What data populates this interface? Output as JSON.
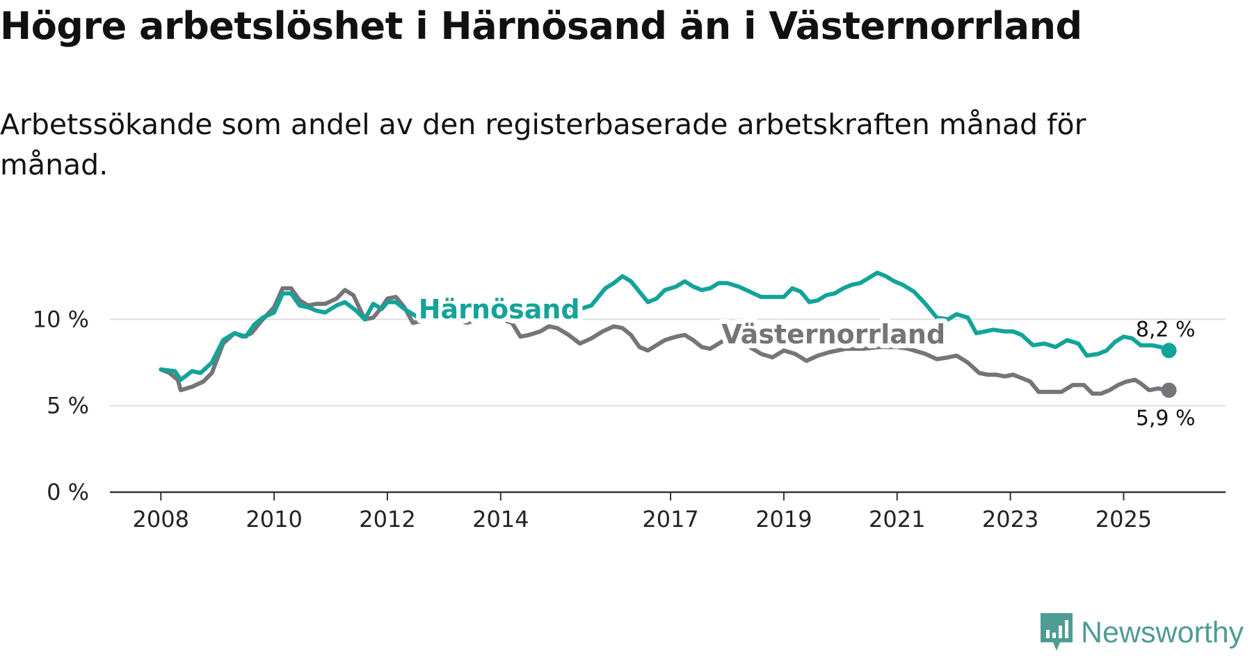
{
  "brand": {
    "name": "Newsworthy"
  },
  "chart_data": {
    "type": "line",
    "title": "Högre arbetslöshet i Härnösand än i Västernorrland",
    "subtitle": "Arbetssökande som andel av den registerbaserade arbetskraften månad för månad.",
    "xlabel": "",
    "ylabel": "",
    "x_ticks": [
      {
        "label": "2008",
        "value": 2008
      },
      {
        "label": "2010",
        "value": 2010
      },
      {
        "label": "2012",
        "value": 2012
      },
      {
        "label": "2014",
        "value": 2014
      },
      {
        "label": "2017",
        "value": 2017
      },
      {
        "label": "2019",
        "value": 2019
      },
      {
        "label": "2021",
        "value": 2021
      },
      {
        "label": "2023",
        "value": 2023
      },
      {
        "label": "2025",
        "value": 2025
      }
    ],
    "y_ticks": [
      {
        "label": "0 %",
        "value": 0
      },
      {
        "label": "5 %",
        "value": 5
      },
      {
        "label": "10 %",
        "value": 10
      }
    ],
    "xlim": [
      2007.1,
      2026.8
    ],
    "ylim": [
      0,
      14
    ],
    "grid": true,
    "series": [
      {
        "name": "Härnösand",
        "color": "#14a399",
        "end_label": "8,2 %",
        "points": [
          [
            2008.0,
            7.1
          ],
          [
            2008.25,
            7.0
          ],
          [
            2008.35,
            6.5
          ],
          [
            2008.55,
            7.0
          ],
          [
            2008.7,
            6.9
          ],
          [
            2008.9,
            7.5
          ],
          [
            2009.1,
            8.8
          ],
          [
            2009.3,
            9.2
          ],
          [
            2009.5,
            9.0
          ],
          [
            2009.65,
            9.7
          ],
          [
            2009.8,
            10.1
          ],
          [
            2010.0,
            10.4
          ],
          [
            2010.15,
            11.5
          ],
          [
            2010.3,
            11.5
          ],
          [
            2010.45,
            10.8
          ],
          [
            2010.6,
            10.7
          ],
          [
            2010.75,
            10.5
          ],
          [
            2010.9,
            10.4
          ],
          [
            2011.1,
            10.8
          ],
          [
            2011.25,
            11.0
          ],
          [
            2011.45,
            10.5
          ],
          [
            2011.6,
            10.0
          ],
          [
            2011.75,
            10.9
          ],
          [
            2011.9,
            10.6
          ],
          [
            2012.0,
            11.0
          ],
          [
            2012.15,
            11.0
          ],
          [
            2012.3,
            10.6
          ],
          [
            2012.45,
            10.3
          ],
          [
            2012.6,
            10.0
          ],
          [
            2012.75,
            10.2
          ],
          [
            2013.0,
            10.3
          ],
          [
            2013.3,
            10.2
          ],
          [
            2013.6,
            10.0
          ],
          [
            2013.9,
            10.3
          ],
          [
            2014.2,
            10.5
          ],
          [
            2014.5,
            10.0
          ],
          [
            2014.8,
            10.3
          ],
          [
            2015.1,
            10.4
          ],
          [
            2015.4,
            10.6
          ],
          [
            2015.6,
            10.8
          ],
          [
            2015.85,
            11.8
          ],
          [
            2016.0,
            12.1
          ],
          [
            2016.15,
            12.5
          ],
          [
            2016.3,
            12.2
          ],
          [
            2016.45,
            11.6
          ],
          [
            2016.6,
            11.0
          ],
          [
            2016.75,
            11.2
          ],
          [
            2016.9,
            11.7
          ],
          [
            2017.1,
            11.9
          ],
          [
            2017.25,
            12.2
          ],
          [
            2017.4,
            11.9
          ],
          [
            2017.55,
            11.7
          ],
          [
            2017.7,
            11.8
          ],
          [
            2017.85,
            12.1
          ],
          [
            2018.0,
            12.1
          ],
          [
            2018.2,
            11.9
          ],
          [
            2018.4,
            11.6
          ],
          [
            2018.6,
            11.3
          ],
          [
            2018.8,
            11.3
          ],
          [
            2019.0,
            11.3
          ],
          [
            2019.15,
            11.8
          ],
          [
            2019.3,
            11.6
          ],
          [
            2019.45,
            11.0
          ],
          [
            2019.6,
            11.1
          ],
          [
            2019.75,
            11.4
          ],
          [
            2019.9,
            11.5
          ],
          [
            2020.05,
            11.8
          ],
          [
            2020.2,
            12.0
          ],
          [
            2020.35,
            12.1
          ],
          [
            2020.5,
            12.4
          ],
          [
            2020.65,
            12.7
          ],
          [
            2020.8,
            12.5
          ],
          [
            2020.95,
            12.2
          ],
          [
            2021.1,
            12.0
          ],
          [
            2021.3,
            11.6
          ],
          [
            2021.5,
            10.9
          ],
          [
            2021.7,
            10.1
          ],
          [
            2021.9,
            10.0
          ],
          [
            2022.05,
            10.3
          ],
          [
            2022.25,
            10.1
          ],
          [
            2022.4,
            9.2
          ],
          [
            2022.55,
            9.3
          ],
          [
            2022.7,
            9.4
          ],
          [
            2022.9,
            9.3
          ],
          [
            2023.05,
            9.3
          ],
          [
            2023.2,
            9.1
          ],
          [
            2023.4,
            8.5
          ],
          [
            2023.6,
            8.6
          ],
          [
            2023.8,
            8.4
          ],
          [
            2024.0,
            8.8
          ],
          [
            2024.2,
            8.6
          ],
          [
            2024.35,
            7.9
          ],
          [
            2024.55,
            8.0
          ],
          [
            2024.7,
            8.2
          ],
          [
            2024.85,
            8.7
          ],
          [
            2025.0,
            9.0
          ],
          [
            2025.15,
            8.9
          ],
          [
            2025.3,
            8.5
          ],
          [
            2025.5,
            8.5
          ],
          [
            2025.65,
            8.4
          ],
          [
            2025.8,
            8.2
          ]
        ]
      },
      {
        "name": "Västernorrland",
        "color": "#747479",
        "end_label": "5,9 %",
        "points": [
          [
            2008.0,
            7.1
          ],
          [
            2008.15,
            6.9
          ],
          [
            2008.3,
            6.5
          ],
          [
            2008.35,
            5.9
          ],
          [
            2008.55,
            6.1
          ],
          [
            2008.75,
            6.4
          ],
          [
            2008.9,
            6.9
          ],
          [
            2009.1,
            8.6
          ],
          [
            2009.3,
            9.2
          ],
          [
            2009.45,
            9.0
          ],
          [
            2009.6,
            9.2
          ],
          [
            2009.8,
            10.0
          ],
          [
            2010.0,
            10.7
          ],
          [
            2010.15,
            11.8
          ],
          [
            2010.3,
            11.8
          ],
          [
            2010.45,
            11.1
          ],
          [
            2010.6,
            10.8
          ],
          [
            2010.75,
            10.9
          ],
          [
            2010.9,
            10.9
          ],
          [
            2011.1,
            11.2
          ],
          [
            2011.25,
            11.7
          ],
          [
            2011.4,
            11.4
          ],
          [
            2011.6,
            10.0
          ],
          [
            2011.75,
            10.1
          ],
          [
            2011.9,
            10.7
          ],
          [
            2012.0,
            11.2
          ],
          [
            2012.15,
            11.3
          ],
          [
            2012.3,
            10.7
          ],
          [
            2012.45,
            9.8
          ],
          [
            2012.6,
            9.9
          ],
          [
            2012.8,
            10.1
          ],
          [
            2013.1,
            10.2
          ],
          [
            2013.4,
            9.8
          ],
          [
            2013.7,
            10.1
          ],
          [
            2014.0,
            10.0
          ],
          [
            2014.2,
            9.8
          ],
          [
            2014.35,
            9.0
          ],
          [
            2014.5,
            9.1
          ],
          [
            2014.7,
            9.3
          ],
          [
            2014.85,
            9.6
          ],
          [
            2015.0,
            9.5
          ],
          [
            2015.2,
            9.1
          ],
          [
            2015.4,
            8.6
          ],
          [
            2015.6,
            8.9
          ],
          [
            2015.8,
            9.3
          ],
          [
            2016.0,
            9.6
          ],
          [
            2016.15,
            9.5
          ],
          [
            2016.3,
            9.1
          ],
          [
            2016.45,
            8.4
          ],
          [
            2016.6,
            8.2
          ],
          [
            2016.75,
            8.5
          ],
          [
            2016.9,
            8.8
          ],
          [
            2017.1,
            9.0
          ],
          [
            2017.25,
            9.1
          ],
          [
            2017.4,
            8.8
          ],
          [
            2017.55,
            8.4
          ],
          [
            2017.7,
            8.3
          ],
          [
            2017.85,
            8.6
          ],
          [
            2018.0,
            8.9
          ],
          [
            2018.3,
            8.6
          ],
          [
            2018.6,
            8.0
          ],
          [
            2018.8,
            7.8
          ],
          [
            2019.0,
            8.2
          ],
          [
            2019.2,
            8.0
          ],
          [
            2019.4,
            7.6
          ],
          [
            2019.6,
            7.9
          ],
          [
            2019.8,
            8.1
          ],
          [
            2020.1,
            8.3
          ],
          [
            2020.4,
            8.3
          ],
          [
            2020.7,
            8.4
          ],
          [
            2021.0,
            8.4
          ],
          [
            2021.2,
            8.3
          ],
          [
            2021.5,
            8.0
          ],
          [
            2021.7,
            7.7
          ],
          [
            2021.9,
            7.8
          ],
          [
            2022.05,
            7.9
          ],
          [
            2022.25,
            7.5
          ],
          [
            2022.45,
            6.9
          ],
          [
            2022.6,
            6.8
          ],
          [
            2022.75,
            6.8
          ],
          [
            2022.9,
            6.7
          ],
          [
            2023.05,
            6.8
          ],
          [
            2023.2,
            6.6
          ],
          [
            2023.35,
            6.4
          ],
          [
            2023.5,
            5.8
          ],
          [
            2023.7,
            5.8
          ],
          [
            2023.9,
            5.8
          ],
          [
            2024.1,
            6.2
          ],
          [
            2024.3,
            6.2
          ],
          [
            2024.45,
            5.7
          ],
          [
            2024.6,
            5.7
          ],
          [
            2024.75,
            5.9
          ],
          [
            2024.9,
            6.2
          ],
          [
            2025.05,
            6.4
          ],
          [
            2025.2,
            6.5
          ],
          [
            2025.3,
            6.3
          ],
          [
            2025.45,
            5.9
          ],
          [
            2025.6,
            6.0
          ],
          [
            2025.8,
            5.9
          ]
        ]
      }
    ]
  }
}
